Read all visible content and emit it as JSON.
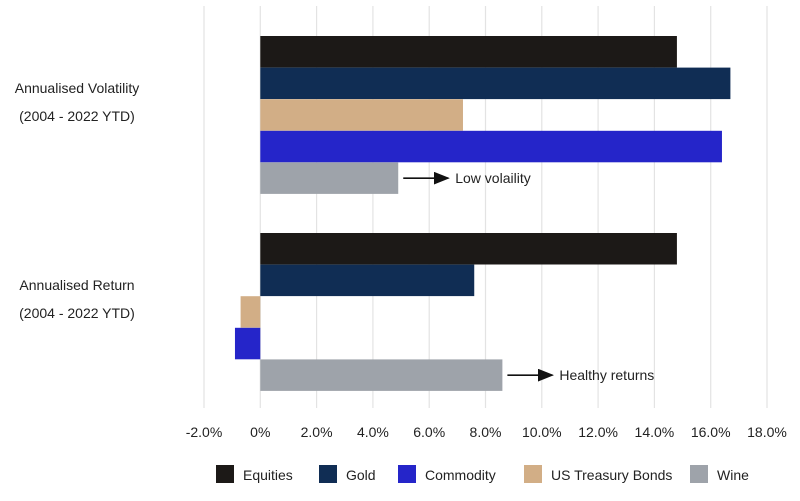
{
  "chart_data": {
    "type": "bar",
    "orientation": "horizontal",
    "groups": [
      {
        "label_line1": "Annualised Volatility",
        "label_line2": "(2004 - 2022 YTD)"
      },
      {
        "label_line1": "Annualised Return",
        "label_line2": "(2004 - 2022 YTD)"
      }
    ],
    "series": [
      {
        "name": "Equities",
        "color": "#1c1917",
        "values": [
          14.8,
          14.8
        ]
      },
      {
        "name": "Gold",
        "color": "#102d54",
        "values": [
          16.7,
          7.6
        ]
      },
      {
        "name": "US Treasury Bonds",
        "color": "#d2ae86",
        "values": [
          7.2,
          -0.7
        ]
      },
      {
        "name": "Commodity",
        "color": "#2525c9",
        "values": [
          16.4,
          -0.9
        ]
      },
      {
        "name": "Wine",
        "color": "#9ea3aa",
        "values": [
          4.9,
          8.6
        ]
      }
    ],
    "legend_order": [
      "Equities",
      "Gold",
      "Commodity",
      "US Treasury Bonds",
      "Wine"
    ],
    "legend_position": "bottom",
    "xlim": [
      -2.0,
      18.0
    ],
    "xticks": [
      -2,
      0,
      2,
      4,
      6,
      8,
      10,
      12,
      14,
      16,
      18
    ],
    "xtick_labels": [
      "-2.0%",
      "0%",
      "2.0%",
      "4.0%",
      "6.0%",
      "8.0%",
      "10.0%",
      "12.0%",
      "14.0%",
      "16.0%",
      "18.0%"
    ],
    "grid": "vertical",
    "annotations": [
      {
        "text": "Low volaility",
        "group": 0,
        "series": "Wine"
      },
      {
        "text": "Healthy returns",
        "group": 1,
        "series": "Wine"
      }
    ]
  }
}
